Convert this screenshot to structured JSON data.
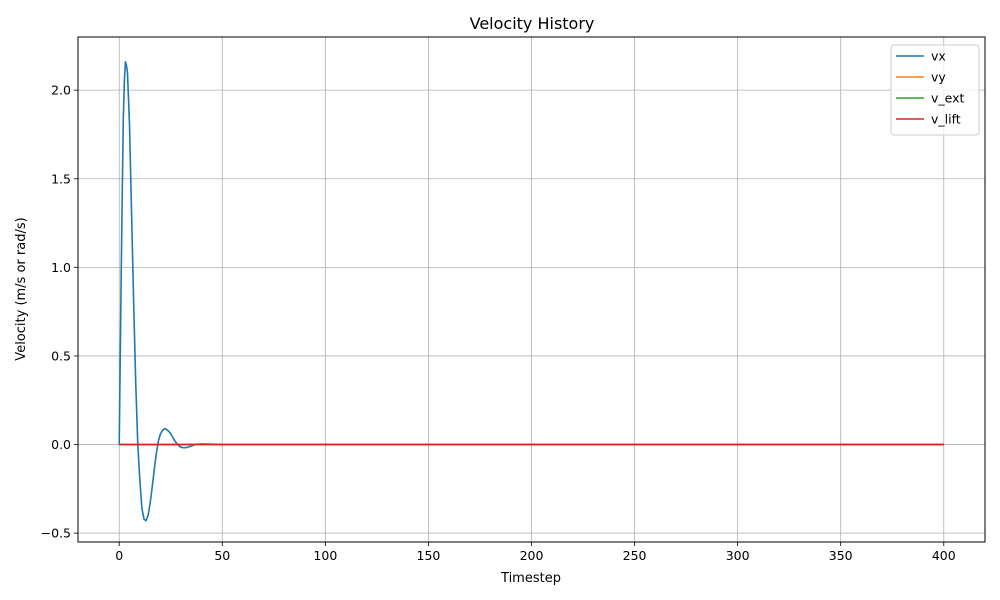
{
  "chart_data": {
    "type": "line",
    "title": "Velocity History",
    "xlabel": "Timestep",
    "ylabel": "Velocity (m/s or rad/s)",
    "xlim": [
      -20,
      420
    ],
    "ylim": [
      -0.55,
      2.3
    ],
    "xticks": [
      0,
      50,
      100,
      150,
      200,
      250,
      300,
      350,
      400
    ],
    "yticks": [
      -0.5,
      0.0,
      0.5,
      1.0,
      1.5,
      2.0
    ],
    "ytick_labels": [
      "−0.5",
      "0.0",
      "0.5",
      "1.0",
      "1.5",
      "2.0"
    ],
    "grid": true,
    "legend_position": "top-right",
    "series": [
      {
        "name": "vx",
        "color": "#1f77b4",
        "points": [
          [
            0,
            0.0
          ],
          [
            0.5,
            0.5
          ],
          [
            1,
            1.0
          ],
          [
            1.5,
            1.45
          ],
          [
            2,
            1.85
          ],
          [
            2.5,
            2.05
          ],
          [
            3,
            2.16
          ],
          [
            3.5,
            2.14
          ],
          [
            4,
            2.1
          ],
          [
            5,
            1.8
          ],
          [
            6,
            1.3
          ],
          [
            7,
            0.8
          ],
          [
            8,
            0.35
          ],
          [
            9,
            0.0
          ],
          [
            10,
            -0.2
          ],
          [
            11,
            -0.36
          ],
          [
            12,
            -0.42
          ],
          [
            13,
            -0.43
          ],
          [
            14,
            -0.4
          ],
          [
            15,
            -0.33
          ],
          [
            16,
            -0.24
          ],
          [
            17,
            -0.14
          ],
          [
            18,
            -0.05
          ],
          [
            19,
            0.02
          ],
          [
            20,
            0.06
          ],
          [
            21,
            0.08
          ],
          [
            22,
            0.09
          ],
          [
            23,
            0.085
          ],
          [
            24,
            0.075
          ],
          [
            25,
            0.06
          ],
          [
            26,
            0.04
          ],
          [
            27,
            0.02
          ],
          [
            28,
            0.005
          ],
          [
            29,
            -0.008
          ],
          [
            30,
            -0.015
          ],
          [
            31,
            -0.018
          ],
          [
            32,
            -0.018
          ],
          [
            33,
            -0.016
          ],
          [
            34,
            -0.012
          ],
          [
            35,
            -0.008
          ],
          [
            36,
            -0.004
          ],
          [
            37,
            -0.001
          ],
          [
            38,
            0.001
          ],
          [
            39,
            0.002
          ],
          [
            40,
            0.002
          ],
          [
            42,
            0.0015
          ],
          [
            45,
            0.0008
          ],
          [
            50,
            0.0
          ],
          [
            100,
            0.0
          ],
          [
            200,
            0.0
          ],
          [
            300,
            0.0
          ],
          [
            400,
            0.0
          ]
        ]
      },
      {
        "name": "vy",
        "color": "#ff7f0e",
        "points": [
          [
            0,
            0.0
          ],
          [
            400,
            0.0
          ]
        ]
      },
      {
        "name": "v_ext",
        "color": "#2ca02c",
        "points": [
          [
            0,
            0.0
          ],
          [
            400,
            0.0
          ]
        ]
      },
      {
        "name": "v_lift",
        "color": "#d62728",
        "points": [
          [
            0,
            0.0
          ],
          [
            30,
            0.0
          ],
          [
            35,
            0.001
          ],
          [
            40,
            0.003
          ],
          [
            45,
            0.002
          ],
          [
            50,
            0.0
          ],
          [
            400,
            0.0
          ]
        ]
      }
    ]
  }
}
